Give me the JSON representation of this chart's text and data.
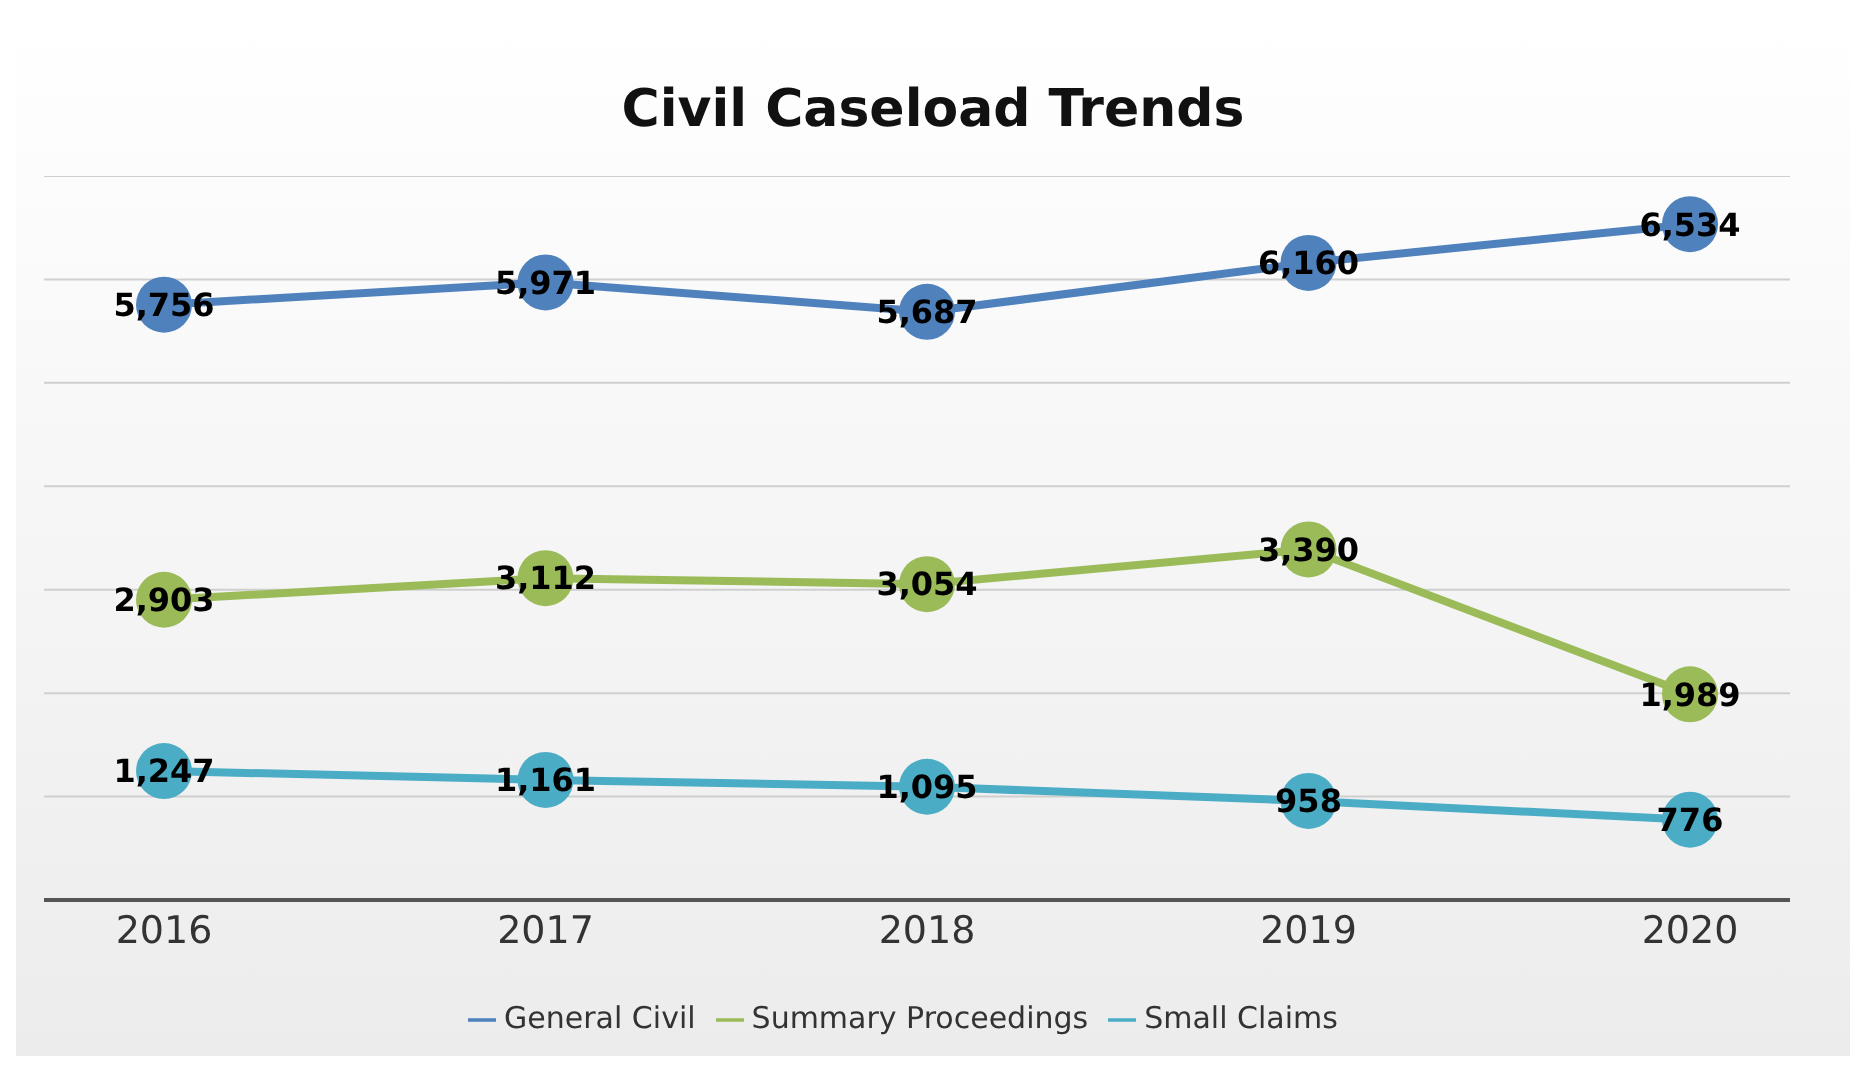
{
  "chart_data": {
    "type": "line",
    "title": "Civil Caseload Trends",
    "categories": [
      "2016",
      "2017",
      "2018",
      "2019",
      "2020"
    ],
    "series": [
      {
        "name": "General Civil",
        "color": "#4f81bd",
        "values": [
          5756,
          5971,
          5687,
          6160,
          6534
        ],
        "value_labels": [
          "5,756",
          "5,971",
          "5,687",
          "6,160",
          "6,534"
        ]
      },
      {
        "name": "Summary Proceedings",
        "color": "#9bbb59",
        "values": [
          2903,
          3112,
          3054,
          3390,
          1989
        ],
        "value_labels": [
          "2,903",
          "3,112",
          "3,054",
          "3,390",
          "1,989"
        ]
      },
      {
        "name": "Small Claims",
        "color": "#4bacc6",
        "values": [
          1247,
          1161,
          1095,
          958,
          776
        ],
        "value_labels": [
          "1,247",
          "1,161",
          "1,095",
          "958",
          "776"
        ]
      }
    ],
    "ylim": [
      0,
      7000
    ],
    "yticks": [
      {
        "value": 0,
        "label": null
      },
      {
        "value": 1000,
        "label": null
      },
      {
        "value": 2000,
        "label": null
      },
      {
        "value": 3000,
        "label": null
      },
      {
        "value": 4000,
        "label": null
      },
      {
        "value": 5000,
        "label": null
      },
      {
        "value": 6000,
        "label": null
      },
      {
        "value": 7000,
        "label": null
      }
    ],
    "tick_labels": "x",
    "grid": "y",
    "legend": "bottom",
    "marker": "circle",
    "line_style": "solid"
  }
}
